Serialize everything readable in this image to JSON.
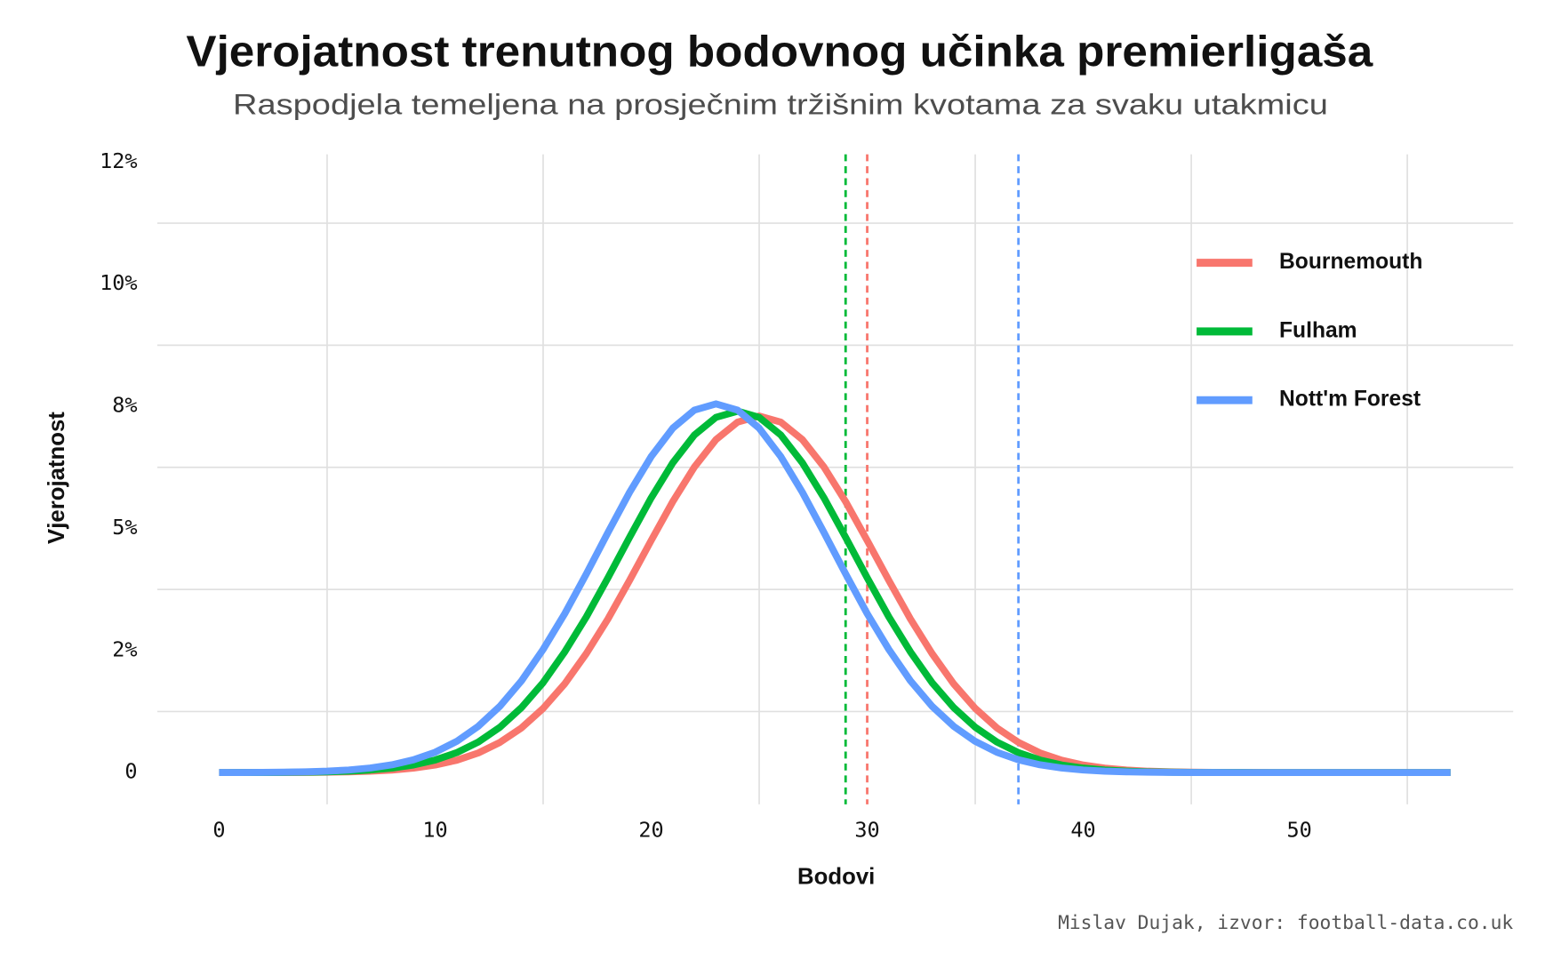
{
  "chart_data": {
    "type": "line",
    "title": "Vjerojatnost trenutnog bodovnog učinka premierligaša",
    "subtitle": "Raspodjela temeljena na prosječnim tržišnim kvotama za svaku utakmicu",
    "x_label": "Bodovi",
    "y_label": "Vjerojatnost",
    "caption": "Mislav Dujak, izvor: football-data.co.uk",
    "x": [
      0,
      1,
      2,
      3,
      4,
      5,
      6,
      7,
      8,
      9,
      10,
      11,
      12,
      13,
      14,
      15,
      16,
      17,
      18,
      19,
      20,
      21,
      22,
      23,
      24,
      25,
      26,
      27,
      28,
      29,
      30,
      31,
      32,
      33,
      34,
      35,
      36,
      37,
      38,
      39,
      40,
      41,
      42,
      43,
      44,
      45,
      46,
      47,
      48,
      49,
      50,
      51,
      52,
      53,
      54,
      55,
      56,
      57
    ],
    "series": [
      {
        "name": "Bournemouth",
        "color": "#F8766D",
        "vline": 30,
        "values": [
          0,
          0,
          0.001,
          0.002,
          0.004,
          0.008,
          0.015,
          0.028,
          0.051,
          0.091,
          0.154,
          0.253,
          0.402,
          0.618,
          0.916,
          1.314,
          1.818,
          2.438,
          3.146,
          3.935,
          4.752,
          5.548,
          6.256,
          6.818,
          7.176,
          7.3,
          7.176,
          6.818,
          6.256,
          5.548,
          4.752,
          3.935,
          3.146,
          2.438,
          1.818,
          1.314,
          0.916,
          0.618,
          0.402,
          0.253,
          0.154,
          0.091,
          0.051,
          0.028,
          0.015,
          0.008,
          0.004,
          0.002,
          0.001,
          0,
          0,
          0,
          0,
          0,
          0,
          0,
          0,
          0
        ]
      },
      {
        "name": "Fulham",
        "color": "#00BA38",
        "vline": 29,
        "values": [
          0,
          0.001,
          0.002,
          0.004,
          0.008,
          0.015,
          0.029,
          0.052,
          0.092,
          0.156,
          0.257,
          0.408,
          0.626,
          0.929,
          1.332,
          1.843,
          2.472,
          3.189,
          3.989,
          4.817,
          5.624,
          6.342,
          6.912,
          7.274,
          7.4,
          7.274,
          6.912,
          6.342,
          5.624,
          4.817,
          3.989,
          3.189,
          2.472,
          1.843,
          1.332,
          0.929,
          0.626,
          0.408,
          0.257,
          0.156,
          0.092,
          0.052,
          0.029,
          0.015,
          0.008,
          0.004,
          0.002,
          0.001,
          0,
          0,
          0,
          0,
          0,
          0,
          0,
          0,
          0,
          0
        ]
      },
      {
        "name": "Nott'm Forest",
        "color": "#619CFF",
        "vline": 37,
        "values": [
          0.001,
          0.002,
          0.004,
          0.008,
          0.015,
          0.029,
          0.053,
          0.094,
          0.159,
          0.262,
          0.416,
          0.639,
          0.948,
          1.359,
          1.88,
          2.522,
          3.254,
          4.069,
          4.915,
          5.738,
          6.47,
          7.052,
          7.422,
          7.55,
          7.422,
          7.052,
          6.47,
          5.738,
          4.915,
          4.069,
          3.254,
          2.522,
          1.88,
          1.359,
          0.948,
          0.639,
          0.416,
          0.262,
          0.159,
          0.094,
          0.053,
          0.029,
          0.015,
          0.008,
          0.004,
          0.002,
          0.001,
          0,
          0,
          0,
          0,
          0,
          0,
          0,
          0,
          0,
          0,
          0
        ]
      }
    ],
    "xlim": [
      -2.86,
      59.9
    ],
    "ylim": [
      -0.65,
      12.66
    ],
    "xticks": [
      0,
      10,
      20,
      30,
      40,
      50
    ],
    "x_grid": [
      5,
      15,
      25,
      35,
      45,
      55
    ],
    "yticks": [
      0,
      {
        "value": 2.5,
        "label": "2%"
      },
      {
        "value": 5,
        "label": "5%"
      },
      {
        "value": 7.5,
        "label": "8%"
      },
      {
        "value": 10,
        "label": "10%"
      },
      {
        "value": 12.5,
        "label": "12%"
      }
    ],
    "y_grid": [
      1.25,
      3.75,
      6.25,
      8.75,
      11.25
    ],
    "grid": true,
    "legend": "top-right"
  }
}
